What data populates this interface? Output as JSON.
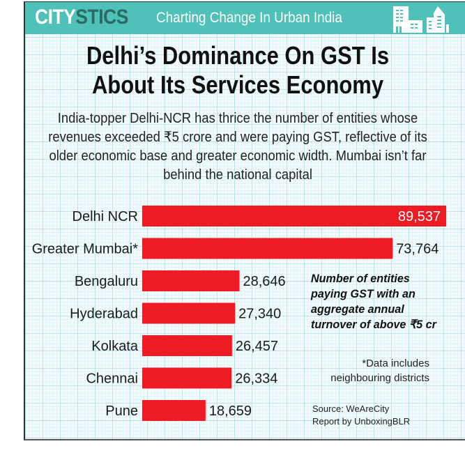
{
  "header": {
    "brand_part1": "CITY",
    "brand_part2": "STICS",
    "tagline": "Charting Change In Urban India",
    "icon": "city-skyline-icon",
    "colors": {
      "banner": "#4fc1b9",
      "brand_dark": "#2b6b66"
    }
  },
  "title": "Delhi’s Dominance On GST Is About Its Services Economy",
  "subtitle": "India-topper Delhi-NCR has thrice the number of entities whose revenues exceeded ₹5 crore and were paying GST, reflective of its older economic base and greater economic width. Mumbai isn’t far behind the national capital",
  "annotation": "Number of entities\npaying GST with an\naggregate annual\nturnover of above ₹5 cr",
  "footnote": "*Data includes\nneighbouring districts",
  "source": "Source: WeAreCity\nReport by UnboxingBLR",
  "chart_data": {
    "type": "bar",
    "orientation": "horizontal",
    "title": "Number of entities paying GST with an aggregate annual turnover of above ₹5 cr",
    "categories": [
      "Delhi NCR",
      "Greater Mumbai*",
      "Bengaluru",
      "Hyderabad",
      "Kolkata",
      "Chennai",
      "Pune"
    ],
    "values": [
      89537,
      73764,
      28646,
      27340,
      26457,
      26334,
      18659
    ],
    "value_labels": [
      "89,537",
      "73,764",
      "28,646",
      "27,340",
      "26,457",
      "26,334",
      "18,659"
    ],
    "xlabel": "",
    "ylabel": "",
    "xlim": [
      0,
      89537
    ],
    "grid": false,
    "legend": "none",
    "bar_color": "#ed1c24"
  }
}
